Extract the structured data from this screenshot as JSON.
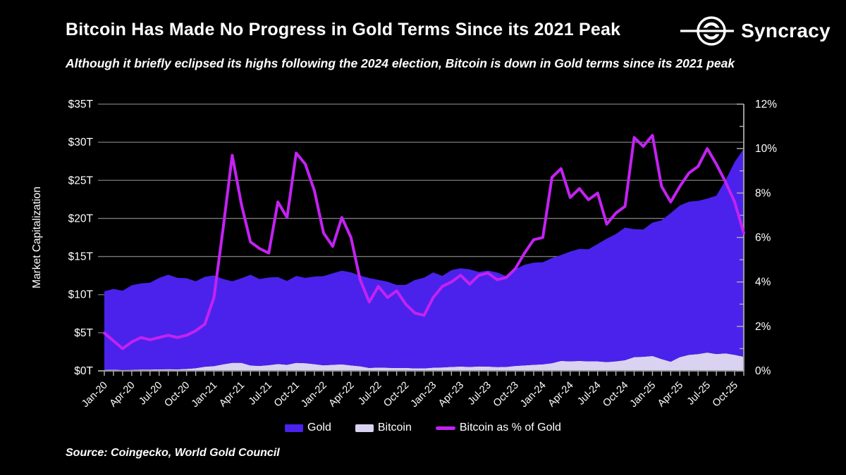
{
  "header": {
    "title": "Bitcoin Has Made No Progress in Gold Terms Since its 2021 Peak",
    "subtitle": "Although it briefly eclipsed its highs following the 2024 election, Bitcoin is down in Gold terms since its 2021 peak",
    "brand": "Syncracy"
  },
  "source": {
    "text": "Source: Coingecko, World Gold Council"
  },
  "legend": [
    {
      "label": "Gold",
      "type": "area",
      "color": "#4B22EC"
    },
    {
      "label": "Bitcoin",
      "type": "area",
      "color": "#D9D2F0"
    },
    {
      "label": "Bitcoin as % of Gold",
      "type": "line",
      "color": "#C322F2"
    }
  ],
  "chart_data": {
    "type": "area",
    "stacked": true,
    "title": "Bitcoin Has Made No Progress in Gold Terms Since its 2021 Peak",
    "ylabel_left": "Market Capitalization",
    "grid": true,
    "legend_position": "bottom",
    "x_tick_every": 3,
    "x": [
      "Jan-20",
      "Feb-20",
      "Mar-20",
      "Apr-20",
      "May-20",
      "Jun-20",
      "Jul-20",
      "Aug-20",
      "Sep-20",
      "Oct-20",
      "Nov-20",
      "Dec-20",
      "Jan-21",
      "Feb-21",
      "Mar-21",
      "Apr-21",
      "May-21",
      "Jun-21",
      "Jul-21",
      "Aug-21",
      "Sep-21",
      "Oct-21",
      "Nov-21",
      "Dec-21",
      "Jan-22",
      "Feb-22",
      "Mar-22",
      "Apr-22",
      "May-22",
      "Jun-22",
      "Jul-22",
      "Aug-22",
      "Sep-22",
      "Oct-22",
      "Nov-22",
      "Dec-22",
      "Jan-23",
      "Feb-23",
      "Mar-23",
      "Apr-23",
      "May-23",
      "Jun-23",
      "Jul-23",
      "Aug-23",
      "Sep-23",
      "Oct-23",
      "Nov-23",
      "Dec-23",
      "Jan-24",
      "Feb-24",
      "Mar-24",
      "Apr-24",
      "May-24",
      "Jun-24",
      "Jul-24",
      "Aug-24",
      "Sep-24",
      "Oct-24",
      "Nov-24",
      "Dec-24",
      "Jan-25",
      "Feb-25",
      "Mar-25",
      "Apr-25",
      "May-25",
      "Jun-25",
      "Jul-25",
      "Aug-25",
      "Sep-25",
      "Oct-25",
      "Nov-25"
    ],
    "left_axis": {
      "min": 0,
      "max": 35,
      "step": 5,
      "labels": [
        "$0T",
        "$5T",
        "$10T",
        "$15T",
        "$20T",
        "$25T",
        "$30T",
        "$35T"
      ],
      "unit": "$T"
    },
    "right_axis": {
      "min": 0,
      "max": 12,
      "step": 2,
      "minor_step": 1,
      "labels": [
        "0%",
        "2%",
        "4%",
        "6%",
        "8%",
        "10%",
        "12%"
      ],
      "unit": "%"
    },
    "series": [
      {
        "name": "Bitcoin",
        "type": "area",
        "axis": "left",
        "color": "#D9D2F0",
        "values": [
          0.13,
          0.15,
          0.12,
          0.13,
          0.17,
          0.17,
          0.2,
          0.22,
          0.2,
          0.25,
          0.35,
          0.54,
          0.62,
          0.85,
          1.05,
          1.05,
          0.7,
          0.65,
          0.75,
          0.9,
          0.8,
          1.05,
          1.0,
          0.88,
          0.73,
          0.8,
          0.85,
          0.72,
          0.6,
          0.38,
          0.44,
          0.4,
          0.37,
          0.39,
          0.32,
          0.32,
          0.42,
          0.45,
          0.52,
          0.56,
          0.52,
          0.58,
          0.56,
          0.5,
          0.52,
          0.65,
          0.72,
          0.8,
          0.85,
          1.0,
          1.3,
          1.25,
          1.3,
          1.25,
          1.25,
          1.15,
          1.25,
          1.4,
          1.8,
          1.85,
          1.95,
          1.55,
          1.2,
          1.8,
          2.1,
          2.2,
          2.4,
          2.2,
          2.3,
          2.1,
          1.85
        ]
      },
      {
        "name": "Gold",
        "type": "area",
        "axis": "left",
        "color": "#4B22EC",
        "values": [
          10.3,
          10.6,
          10.4,
          11.1,
          11.3,
          11.4,
          12.0,
          12.4,
          12.0,
          11.9,
          11.4,
          11.8,
          11.9,
          11.2,
          10.7,
          11.1,
          11.9,
          11.4,
          11.5,
          11.4,
          11.0,
          11.4,
          11.2,
          11.5,
          11.7,
          12.0,
          12.3,
          12.2,
          11.9,
          11.8,
          11.5,
          11.3,
          10.9,
          10.9,
          11.6,
          11.9,
          12.5,
          12.0,
          12.7,
          12.9,
          12.8,
          12.4,
          12.6,
          12.4,
          11.9,
          12.7,
          13.2,
          13.4,
          13.4,
          13.8,
          13.9,
          14.4,
          14.7,
          14.7,
          15.4,
          16.2,
          16.7,
          17.4,
          16.8,
          16.7,
          17.5,
          18.2,
          19.5,
          19.9,
          20.1,
          20.1,
          20.2,
          20.8,
          22.7,
          25.3,
          27.3
        ]
      },
      {
        "name": "Bitcoin as % of Gold",
        "type": "line",
        "axis": "right",
        "color": "#C322F2",
        "values": [
          1.7,
          1.35,
          1.0,
          1.3,
          1.5,
          1.4,
          1.5,
          1.6,
          1.5,
          1.6,
          1.8,
          2.1,
          3.3,
          6.4,
          9.7,
          7.5,
          5.8,
          5.5,
          5.3,
          7.6,
          6.9,
          9.8,
          9.3,
          8.1,
          6.2,
          5.6,
          6.9,
          6.0,
          4.1,
          3.1,
          3.8,
          3.3,
          3.6,
          3.0,
          2.6,
          2.5,
          3.3,
          3.8,
          4.0,
          4.3,
          3.9,
          4.3,
          4.4,
          4.1,
          4.2,
          4.6,
          5.3,
          5.9,
          6.0,
          8.7,
          9.1,
          7.8,
          8.2,
          7.7,
          8.0,
          6.6,
          7.1,
          7.4,
          10.5,
          10.1,
          10.6,
          8.3,
          7.6,
          8.3,
          8.9,
          9.2,
          10.0,
          9.3,
          8.5,
          7.6,
          6.2
        ]
      }
    ],
    "colors": {
      "grid": "#7b7b7b",
      "axis": "#9a9a9a",
      "tick": "#b0b0b0",
      "text": "#ffffff",
      "background": "#000000"
    }
  }
}
